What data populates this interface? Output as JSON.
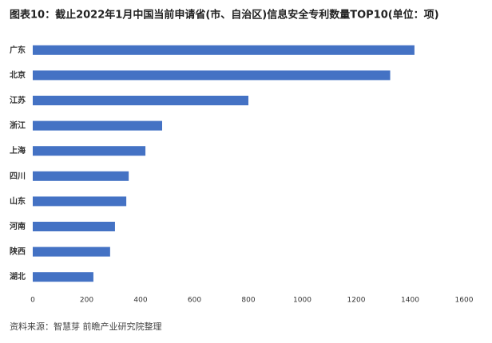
{
  "chart_data": {
    "type": "hbar",
    "title": "图表10：截止2022年1月中国当前申请省(市、自治区)信息安全专利数量TOP10(单位：项)",
    "categories": [
      "广东",
      "北京",
      "江苏",
      "浙江",
      "上海",
      "四川",
      "山东",
      "河南",
      "陕西",
      "湖北"
    ],
    "values": [
      1416,
      1326,
      800,
      480,
      418,
      356,
      347,
      305,
      287,
      225
    ],
    "color": "#4472c4",
    "xlim": [
      0,
      1600
    ],
    "xticks": [
      0,
      200,
      400,
      600,
      800,
      1000,
      1200,
      1400,
      1600
    ],
    "grid": false,
    "source": "资料来源：智慧芽 前瞻产业研究院整理"
  }
}
